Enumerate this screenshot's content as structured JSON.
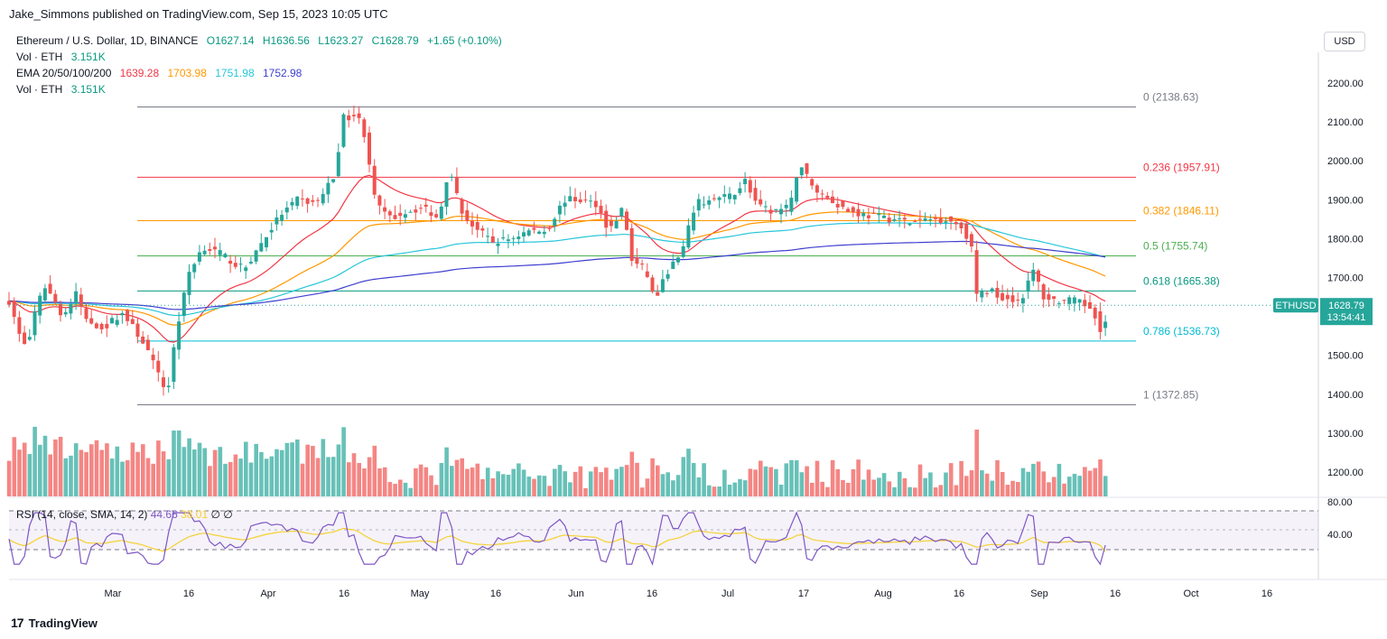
{
  "header": {
    "text": "Jake_Simmons published on TradingView.com, Sep 15, 2023 10:05 UTC"
  },
  "currency_button": "USD",
  "legend": {
    "symbol": "Ethereum / U.S. Dollar, 1D, BINANCE",
    "o": "O1627.14",
    "h": "H1636.56",
    "l": "L1623.27",
    "c": "C1628.79",
    "chg": "+1.65 (+0.10%)",
    "vol_label": "Vol · ETH",
    "vol_value": "3.151K",
    "ema_label": "EMA 20/50/100/200",
    "ema_values": [
      "1639.28",
      "1703.98",
      "1751.98",
      "1752.98"
    ],
    "vol2_label": "Vol · ETH",
    "vol2_value": "3.151K"
  },
  "rsi_legend": {
    "label": "RSI (14, close, SMA, 14, 2)",
    "value": "44.66",
    "sma_value": "38.01",
    "extra1": "∅",
    "extra2": "∅"
  },
  "price_tag": {
    "symbol": "ETHUSD",
    "price": "1628.79",
    "countdown": "13:54:41"
  },
  "footer": {
    "brand": "TradingView",
    "logo": "17"
  },
  "colors": {
    "up": "#26a69a",
    "down": "#ef5350",
    "ema20": "#f23645",
    "ema50": "#ff9800",
    "ema100": "#26c6da",
    "ema200": "#3f3fd0",
    "rsi": "#7e57c2",
    "rsi_sma": "#f5d130"
  },
  "chart_data": {
    "type": "candlestick",
    "symbol": "ETHUSD",
    "price_axis": {
      "ticks": [
        2200,
        2100,
        2000,
        1900,
        1800,
        1700,
        1600,
        1500,
        1400,
        1300,
        1200
      ],
      "labels": [
        "2200.00",
        "2100.00",
        "2000.00",
        "1900.00",
        "1800.00",
        "1700.00",
        "1600.00",
        "1500.00",
        "1400.00",
        "1300.00",
        "1200.00"
      ]
    },
    "rsi_axis": {
      "labels": [
        "80.00",
        "40.00"
      ]
    },
    "time_axis": {
      "labels": [
        "Mar",
        "16",
        "Apr",
        "16",
        "May",
        "16",
        "Jun",
        "16",
        "Jul",
        "17",
        "Aug",
        "16",
        "Sep",
        "16",
        "Oct",
        "16"
      ]
    },
    "fibonacci": [
      {
        "label": "0 (2138.63)",
        "level": 2138.63,
        "color": "#787b86"
      },
      {
        "label": "0.236 (1957.91)",
        "level": 1957.91,
        "color": "#f23645"
      },
      {
        "label": "0.382 (1846.11)",
        "level": 1846.11,
        "color": "#ff9800"
      },
      {
        "label": "0.5 (1755.74)",
        "level": 1755.74,
        "color": "#4caf50"
      },
      {
        "label": "0.618 (1665.38)",
        "level": 1665.38,
        "color": "#089981"
      },
      {
        "label": "0.786 (1536.73)",
        "level": 1536.73,
        "color": "#00bcd4"
      },
      {
        "label": "1 (1372.85)",
        "level": 1372.85,
        "color": "#787b86"
      }
    ],
    "last_price": 1628.79,
    "ema_last": {
      "ema20": 1639.28,
      "ema50": 1703.98,
      "ema100": 1751.98,
      "ema200": 1752.98
    },
    "rsi_last": 44.66,
    "rsi_sma_last": 38.01
  }
}
